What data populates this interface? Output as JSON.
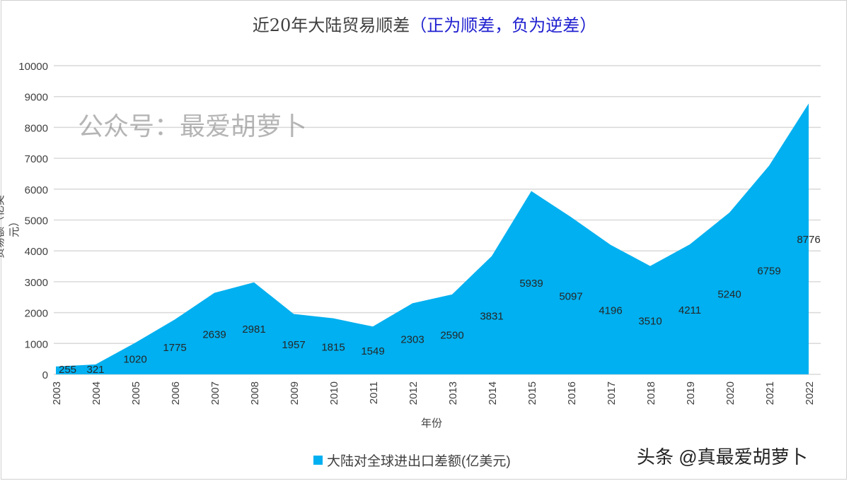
{
  "chart_data": {
    "type": "area",
    "title": "近20年大陆贸易顺差",
    "title_note": "（正为顺差，负为逆差）",
    "xlabel": "年份",
    "ylabel": "贸易额（亿美元）",
    "ylim": [
      0,
      10000
    ],
    "yticks": [
      0,
      1000,
      2000,
      3000,
      4000,
      5000,
      6000,
      7000,
      8000,
      9000,
      10000
    ],
    "grid": true,
    "legend_position": "bottom",
    "categories": [
      "2003",
      "2004",
      "2005",
      "2006",
      "2007",
      "2008",
      "2009",
      "2010",
      "2011",
      "2012",
      "2013",
      "2014",
      "2015",
      "2016",
      "2017",
      "2018",
      "2019",
      "2020",
      "2021",
      "2022"
    ],
    "series": [
      {
        "name": "大陆对全球进出口差额(亿美元)",
        "color": "#00B0F0",
        "values": [
          255,
          321,
          1020,
          1775,
          2639,
          2981,
          1957,
          1815,
          1549,
          2303,
          2590,
          3831,
          5939,
          5097,
          4196,
          3510,
          4211,
          5240,
          6759,
          8776
        ]
      }
    ]
  },
  "watermarks": {
    "center": "公众号：最爱胡萝卜",
    "corner": "头条 @真最爱胡萝卜"
  }
}
